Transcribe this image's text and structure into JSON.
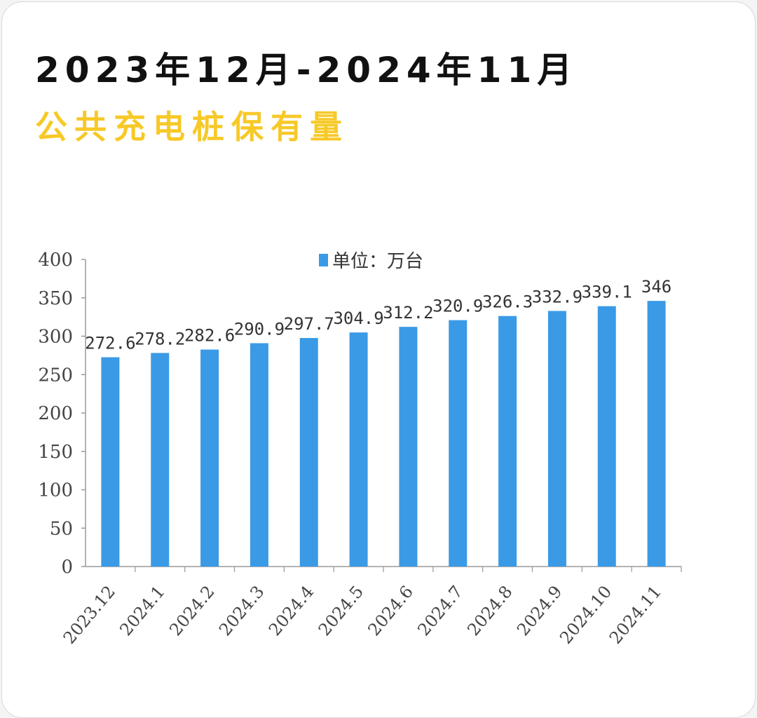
{
  "header": {
    "title_line1": "2023年12月-2024年11月",
    "title_line2": "公共充电桩保有量"
  },
  "colors": {
    "bar": "#3a9ae6",
    "title": "#111111",
    "subtitle": "#f7c928",
    "axis": "#9a9a9a"
  },
  "chart_data": {
    "type": "bar",
    "categories": [
      "2023.12",
      "2024.1",
      "2024.2",
      "2024.3",
      "2024.4",
      "2024.5",
      "2024.6",
      "2024.7",
      "2024.8",
      "2024.9",
      "2024.10",
      "2024.11"
    ],
    "series": [
      {
        "name": "单位：万台",
        "values": [
          272.6,
          278.2,
          282.6,
          290.9,
          297.7,
          304.9,
          312.2,
          320.9,
          326.3,
          332.9,
          339.1,
          346
        ]
      }
    ],
    "data_labels": [
      "272.6",
      "278.2",
      "282.6",
      "290.9",
      "297.7",
      "304.9",
      "312.2",
      "320.9",
      "326.3",
      "332.9",
      "339.1",
      "346"
    ],
    "ylim": [
      0,
      400
    ],
    "yticks": [
      0,
      50,
      100,
      150,
      200,
      250,
      300,
      350,
      400
    ],
    "ytick_labels": [
      "0",
      "50",
      "100",
      "150",
      "200",
      "250",
      "300",
      "350",
      "400"
    ],
    "legend_placement": "top-center",
    "grid": false
  }
}
